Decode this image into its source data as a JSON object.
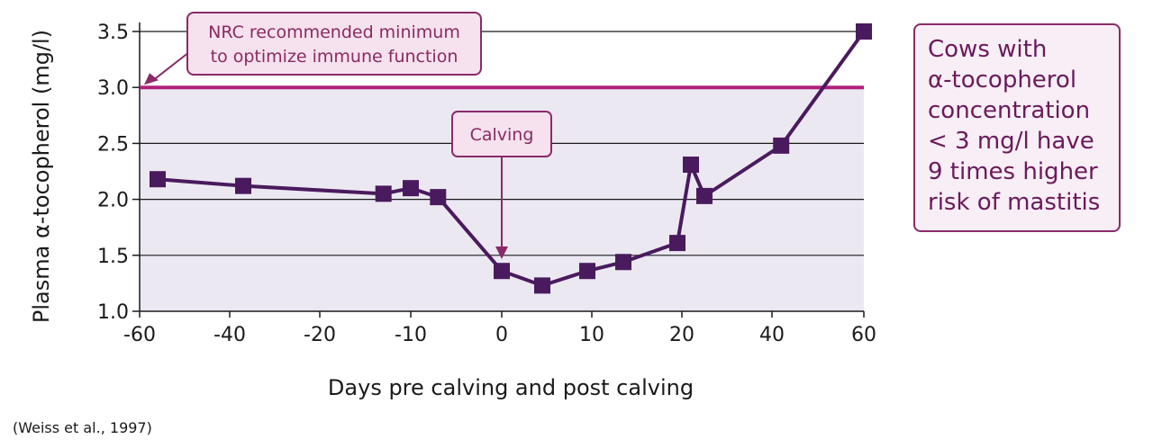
{
  "chart_data": {
    "type": "line",
    "xlabel": "Days pre calving and post calving",
    "ylabel": "Plasma α-tocopherol (mg/l)",
    "ylim": [
      1.0,
      3.5
    ],
    "x_ticks": [
      "-60",
      "-40",
      "-20",
      "-10",
      "0",
      "10",
      "20",
      "40",
      "60"
    ],
    "y_ticks": [
      "1.0",
      "1.5",
      "2.0",
      "2.5",
      "3.0",
      "3.5"
    ],
    "grid": true,
    "series": [
      {
        "x_days": [
          -56,
          -37,
          -13,
          -10,
          -7,
          0,
          4.5,
          9.5,
          13.5,
          19.5,
          22,
          25,
          42,
          60
        ],
        "values": [
          2.18,
          2.12,
          2.05,
          2.1,
          2.02,
          1.36,
          1.23,
          1.36,
          1.44,
          1.61,
          2.31,
          2.03,
          2.48,
          3.5
        ]
      }
    ],
    "threshold": {
      "value": 3.0,
      "label_lines": [
        "NRC recommended minimum",
        "to optimize immune function"
      ]
    },
    "annotations": [
      {
        "label": "Calving",
        "x_day": 0
      }
    ]
  },
  "side_note": {
    "lines": [
      "Cows with",
      "α-tocopherol",
      "concentration",
      "< 3 mg/l have",
      "9 times higher",
      "risk of mastitis"
    ]
  },
  "source": "(Weiss et al., 1997)",
  "colors": {
    "line": "#4a1a5e",
    "threshold": "#b0207a",
    "shade": "#ece8f2",
    "callout_fill": "#f6e1ee",
    "callout_border": "#8a2a6a",
    "grid": "#1a1a1a"
  }
}
